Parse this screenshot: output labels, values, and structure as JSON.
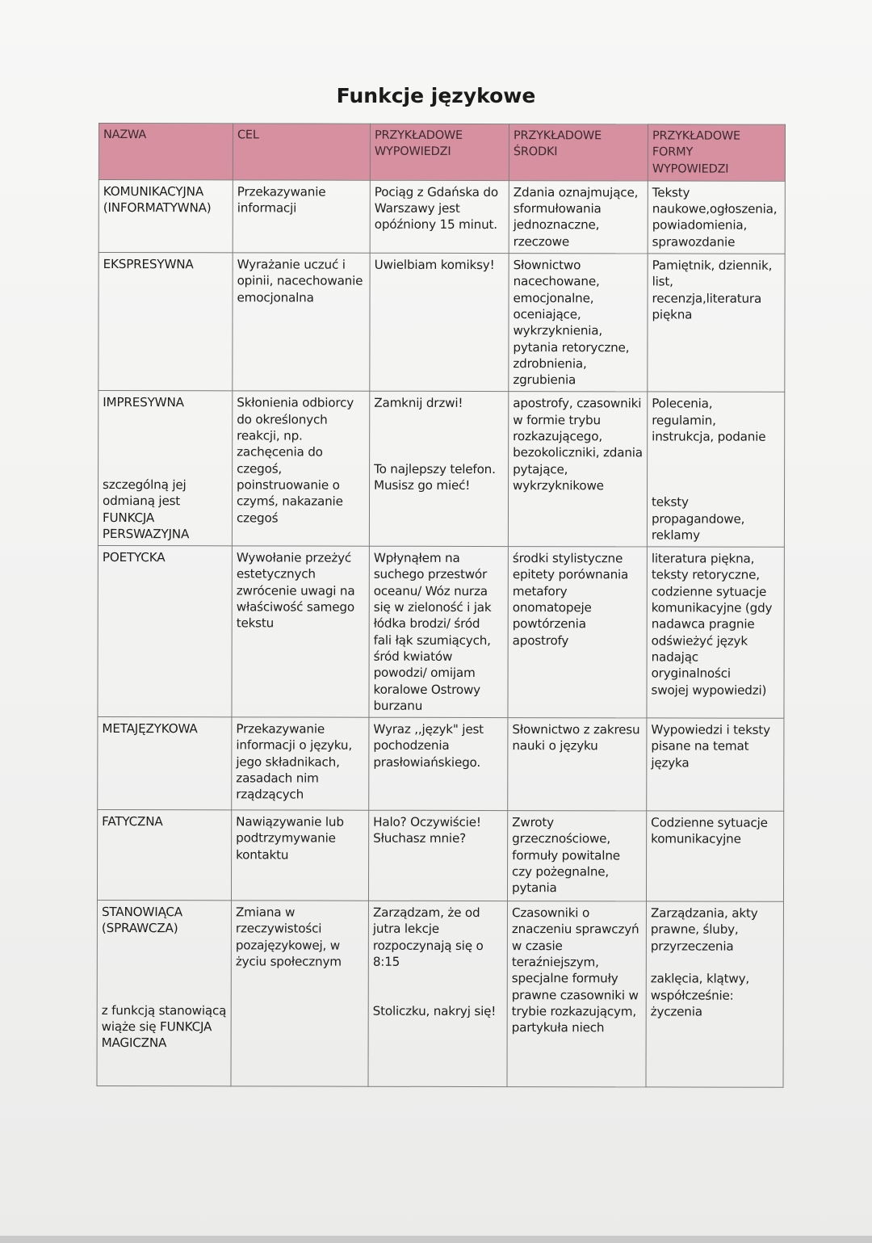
{
  "title": "Funkcje językowe",
  "colors": {
    "header_bg": "#d7909f",
    "border": "#7b7b7b",
    "text": "#1d1d1d"
  },
  "table": {
    "headers": [
      "NAZWA",
      "CEL",
      "PRZYKŁADOWE\nWYPOWIEDZI",
      "PRZYKŁADOWE\nŚRODKI",
      "PRZYKŁADOWE\nFORMY\nWYPOWIEDZI"
    ],
    "rows": [
      [
        "KOMUNIKACYJNA\n(INFORMATYWNA)",
        "Przekazywanie\ninformacji",
        "Pociąg z Gdańska do\nWarszawy jest\nopóźniony 15 minut.",
        "Zdania oznajmujące,\nsformułowania\njednoznaczne,\nrzeczowe",
        "Teksty\nnaukowe,ogłoszenia,\npowiadomienia,\nsprawozdanie"
      ],
      [
        "EKSPRESYWNA",
        "Wyrażanie uczuć i\nopinii, nacechowanie\nemocjonalna",
        "Uwielbiam komiksy!",
        "Słownictwo\nnacechowane,\nemocjonalne,\noceniające,\nwykrzyknienia,\npytania retoryczne,\nzdrobnienia,\nzgrubienia",
        "Pamiętnik, dziennik,\nlist,\nrecenzja,literatura\npiękna"
      ],
      [
        "IMPRESYWNA\n\n\n\n\nszczególną jej\nodmianą jest\nFUNKCJA\nPERSWAZYJNA",
        "Skłonienia odbiorcy\ndo określonych\nreakcji, np.\nzachęcenia do\nczegoś,\npoinstruowanie o\nczymś, nakazanie\nczegoś",
        "Zamknij drzwi!\n\n\n\nTo najlepszy telefon.\nMusisz go mieć!",
        "apostrofy, czasowniki\nw formie trybu\nrozkazującego,\nbezokoliczniki, zdania\npytające,\nwykrzyknikowe",
        "Polecenia, regulamin,\ninstrukcja, podanie\n\n\n\nteksty\npropagandowe,\nreklamy"
      ],
      [
        "POETYCKA",
        "Wywołanie przeżyć\nestetycznych\nzwrócenie uwagi na\nwłaściwość samego\ntekstu",
        "Wpłynąłem na\nsuchego przestwór\noceanu/ Wóz nurza\nsię w zieloność i jak\nłódka brodzi/ śród\nfali łąk szumiących,\nśród kwiatów\npowodzi/ omijam\nkoralowe Ostrowy\nburzanu",
        "środki stylistyczne\nepitety porównania\nmetafory\nonomatopeje\npowtórzenia\napostrofy",
        "literatura piękna,\nteksty retoryczne,\ncodzienne sytuacje\nkomunikacyjne (gdy\nnadawca pragnie\nodświeżyć język\nnadając oryginalności\nswojej wypowiedzi)"
      ],
      [
        "METAJĘZYKOWA",
        "Przekazywanie\ninformacji o języku,\njego składnikach,\nzasadach nim\nrządzących",
        "Wyraz ,,język\" jest\npochodzenia\nprasłowiańskiego.",
        "Słownictwo z zakresu\nnauki o  języku",
        "Wypowiedzi i teksty\npisane na temat\njęzyka"
      ],
      [
        "FATYCZNA",
        "Nawiązywanie lub\npodtrzymywanie\nkontaktu",
        "Halo? Oczywiście!\nSłuchasz mnie?",
        "Zwroty\ngrzecznościowe,\nformuły powitalne\nczy pożegnalne,\npytania",
        "Codzienne sytuacje\nkomunikacyjne"
      ],
      [
        "STANOWIĄCA\n(SPRAWCZA)\n\n\n\n\nz funkcją stanowiącą\nwiąże się FUNKCJA\nMAGICZNA",
        "Zmiana w\nrzeczywistości\npozajęzykowej, w\nżyciu społecznym",
        "Zarządzam, że od\njutra lekcje\nrozpoczynają się o\n8:15\n\n\nStoliczku, nakryj się!",
        "Czasowniki o\nznaczeniu sprawczyń\nw czasie\nteraźniejszym,\nspecjalne formuły\nprawne czasowniki w\ntrybie rozkazującym,\npartykuła niech",
        "Zarządzania, akty\nprawne, śluby,\nprzyrzeczenia\n\nzaklęcia, klątwy,\nwspółcześnie:\nżyczenia"
      ]
    ]
  }
}
